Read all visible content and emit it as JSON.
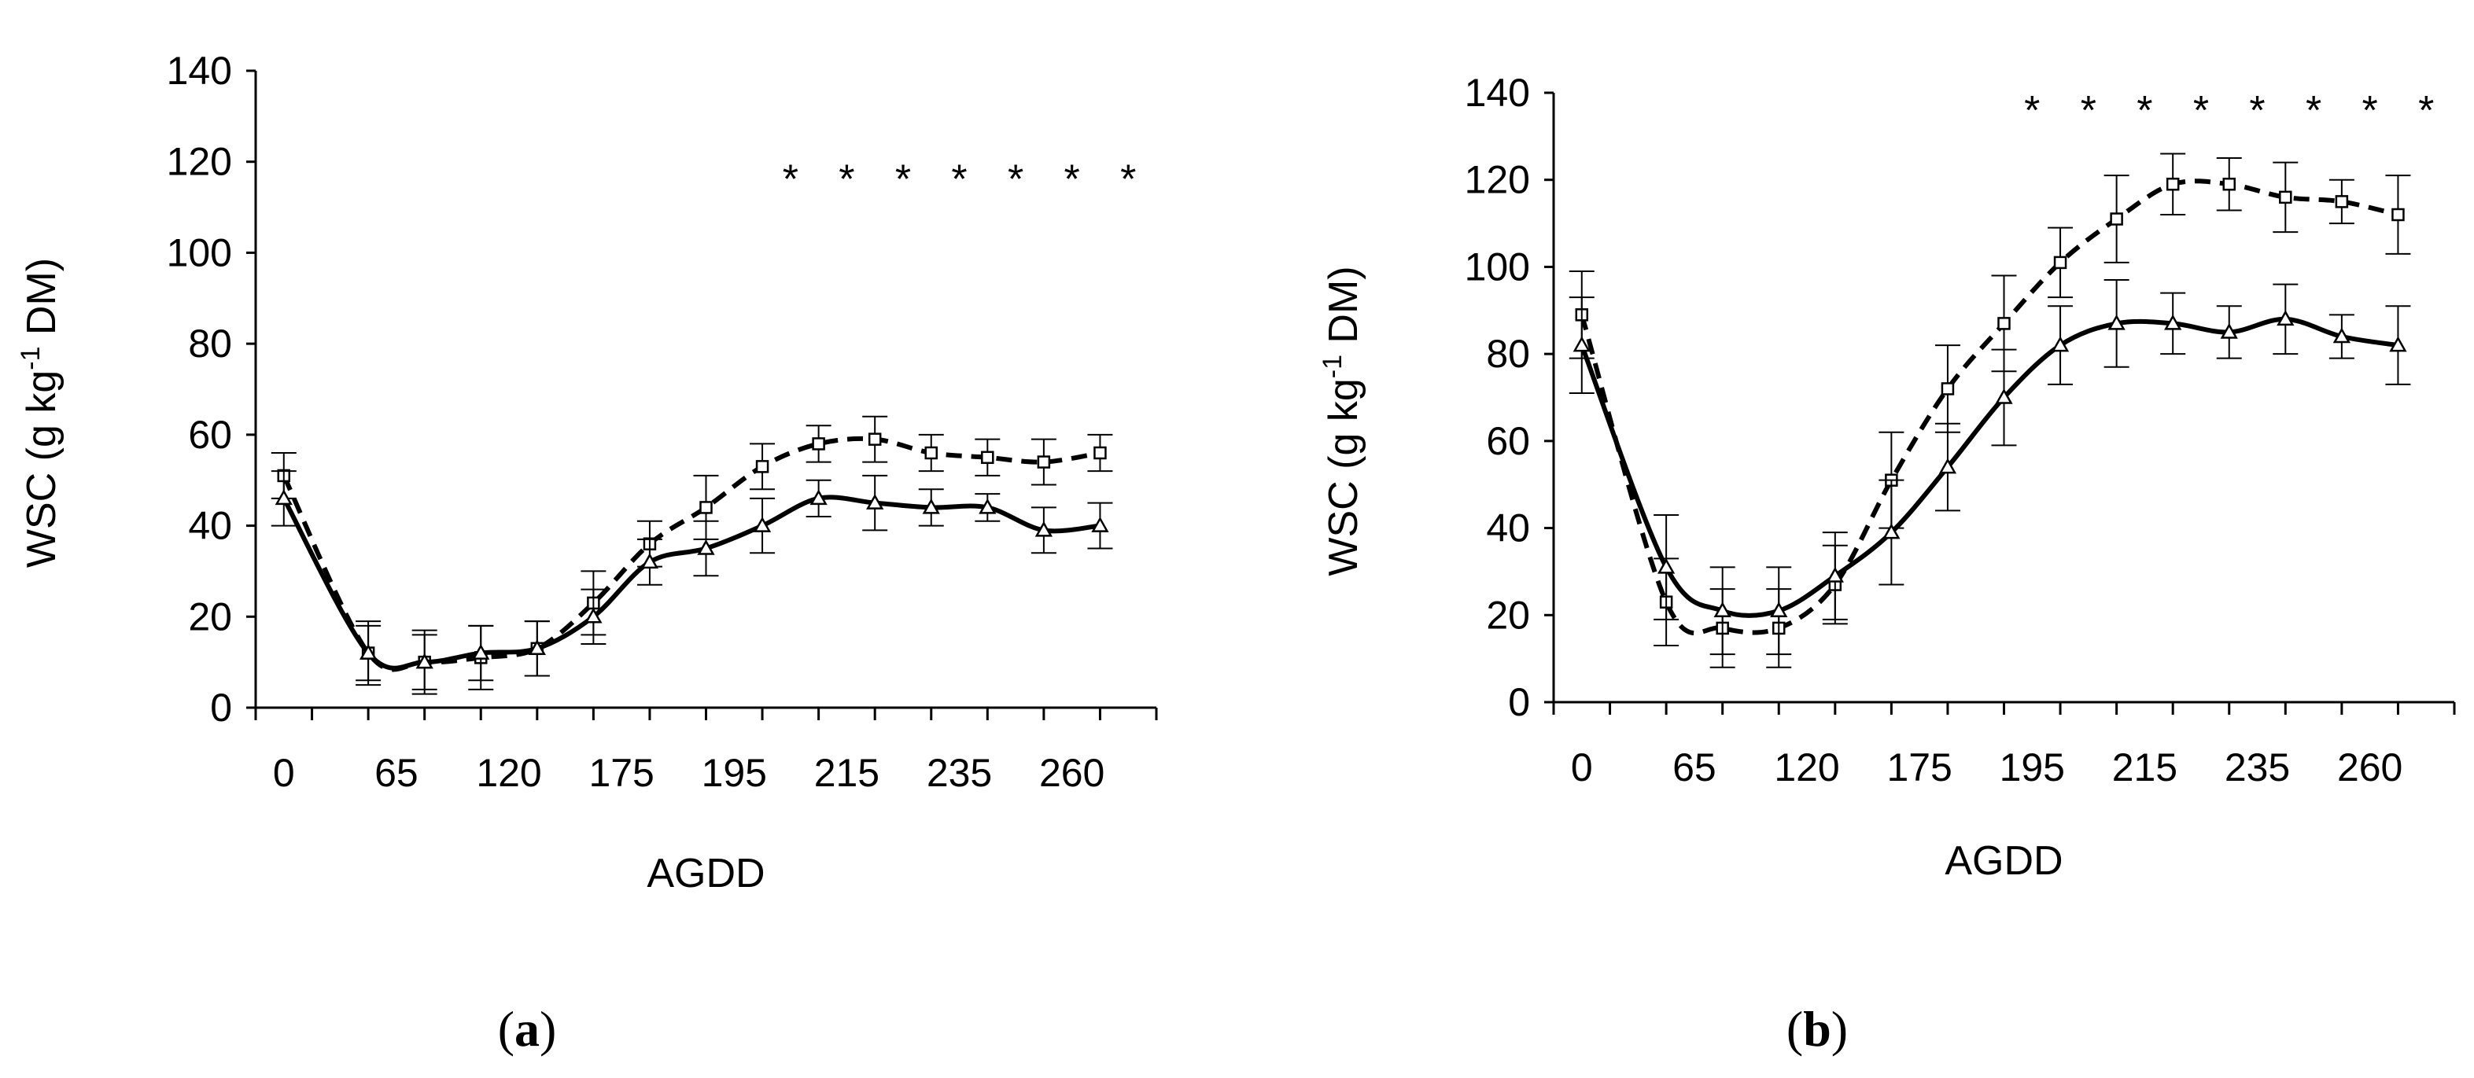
{
  "chart_data": [
    {
      "type": "line",
      "panel_label": "a",
      "xlabel": "AGDD",
      "ylabel": "WSC (g kg",
      "ylabel_sup": "-1",
      "ylabel_suffix": " DM)",
      "ylim": [
        0,
        140
      ],
      "yticks": [
        "0",
        "20",
        "40",
        "60",
        "80",
        "100",
        "120",
        "140"
      ],
      "x_positions": [
        1,
        2,
        3,
        4,
        5,
        6,
        7,
        8,
        9,
        10,
        11,
        12,
        13,
        14,
        15
      ],
      "xticks": [
        {
          "label": "0",
          "at": 1
        },
        {
          "label": "65",
          "at": 3
        },
        {
          "label": "120",
          "at": 5
        },
        {
          "label": "175",
          "at": 7
        },
        {
          "label": "195",
          "at": 9
        },
        {
          "label": "215",
          "at": 11
        },
        {
          "label": "235",
          "at": 13
        },
        {
          "label": "260",
          "at": 15
        }
      ],
      "series": [
        {
          "name": "dashed-square",
          "style": "dashed",
          "marker": "square",
          "x": [
            0.5,
            2,
            3,
            4,
            5,
            6,
            7,
            8,
            9,
            10,
            11,
            12,
            13,
            14,
            15
          ],
          "values": [
            51,
            12,
            10,
            11,
            13,
            23,
            36,
            44,
            53,
            58,
            59,
            56,
            55,
            54,
            56
          ],
          "errors": [
            5,
            7,
            7,
            7,
            6,
            7,
            5,
            7,
            5,
            4,
            5,
            4,
            4,
            5,
            4
          ]
        },
        {
          "name": "solid-triangle",
          "style": "solid",
          "marker": "triangle",
          "x": [
            0.5,
            2,
            3,
            4,
            5,
            6,
            7,
            8,
            9,
            10,
            11,
            12,
            13,
            14,
            15
          ],
          "values": [
            46,
            12,
            10,
            12,
            13,
            20,
            32,
            35,
            40,
            46,
            45,
            44,
            44,
            39,
            40
          ],
          "errors": [
            6,
            6,
            6,
            6,
            6,
            6,
            5,
            6,
            6,
            4,
            6,
            4,
            3,
            5,
            5
          ]
        }
      ],
      "significance": {
        "symbol": "*",
        "x": [
          9.5,
          10.5,
          11.5,
          12.5,
          13.5,
          14.5,
          15.5
        ],
        "y": 120
      }
    },
    {
      "type": "line",
      "panel_label": "b",
      "xlabel": "AGDD",
      "ylabel": "WSC (g kg",
      "ylabel_sup": "-1",
      "ylabel_suffix": " DM)",
      "ylim": [
        0,
        140
      ],
      "yticks": [
        "0",
        "20",
        "40",
        "60",
        "80",
        "100",
        "120",
        "140"
      ],
      "x_positions": [
        1,
        2,
        3,
        4,
        5,
        6,
        7,
        8,
        9,
        10,
        11,
        12,
        13,
        14,
        15
      ],
      "xticks": [
        {
          "label": "0",
          "at": 1
        },
        {
          "label": "65",
          "at": 3
        },
        {
          "label": "120",
          "at": 5
        },
        {
          "label": "175",
          "at": 7
        },
        {
          "label": "195",
          "at": 9
        },
        {
          "label": "215",
          "at": 11
        },
        {
          "label": "235",
          "at": 13
        },
        {
          "label": "260",
          "at": 15
        }
      ],
      "series": [
        {
          "name": "dashed-square",
          "style": "dashed",
          "marker": "square",
          "x": [
            0.5,
            2,
            3,
            4,
            5,
            6,
            7,
            8,
            9,
            10,
            11,
            12,
            13,
            14,
            15
          ],
          "values": [
            89,
            23,
            17,
            17,
            27,
            51,
            72,
            87,
            101,
            111,
            119,
            119,
            116,
            115,
            112
          ],
          "errors": [
            10,
            10,
            9,
            9,
            9,
            11,
            10,
            11,
            8,
            10,
            7,
            6,
            8,
            5,
            9
          ]
        },
        {
          "name": "solid-triangle",
          "style": "solid",
          "marker": "triangle",
          "x": [
            0.5,
            2,
            3,
            4,
            5,
            6,
            7,
            8,
            9,
            10,
            11,
            12,
            13,
            14,
            15
          ],
          "values": [
            82,
            31,
            21,
            21,
            29,
            39,
            54,
            70,
            82,
            87,
            87,
            85,
            88,
            84,
            82
          ],
          "errors": [
            11,
            12,
            10,
            10,
            10,
            12,
            10,
            11,
            9,
            10,
            7,
            6,
            8,
            5,
            9
          ]
        }
      ],
      "significance": {
        "symbol": "*",
        "x": [
          8.5,
          9.5,
          10.5,
          11.5,
          12.5,
          13.5,
          14.5,
          15.5
        ],
        "y": 140
      }
    }
  ]
}
